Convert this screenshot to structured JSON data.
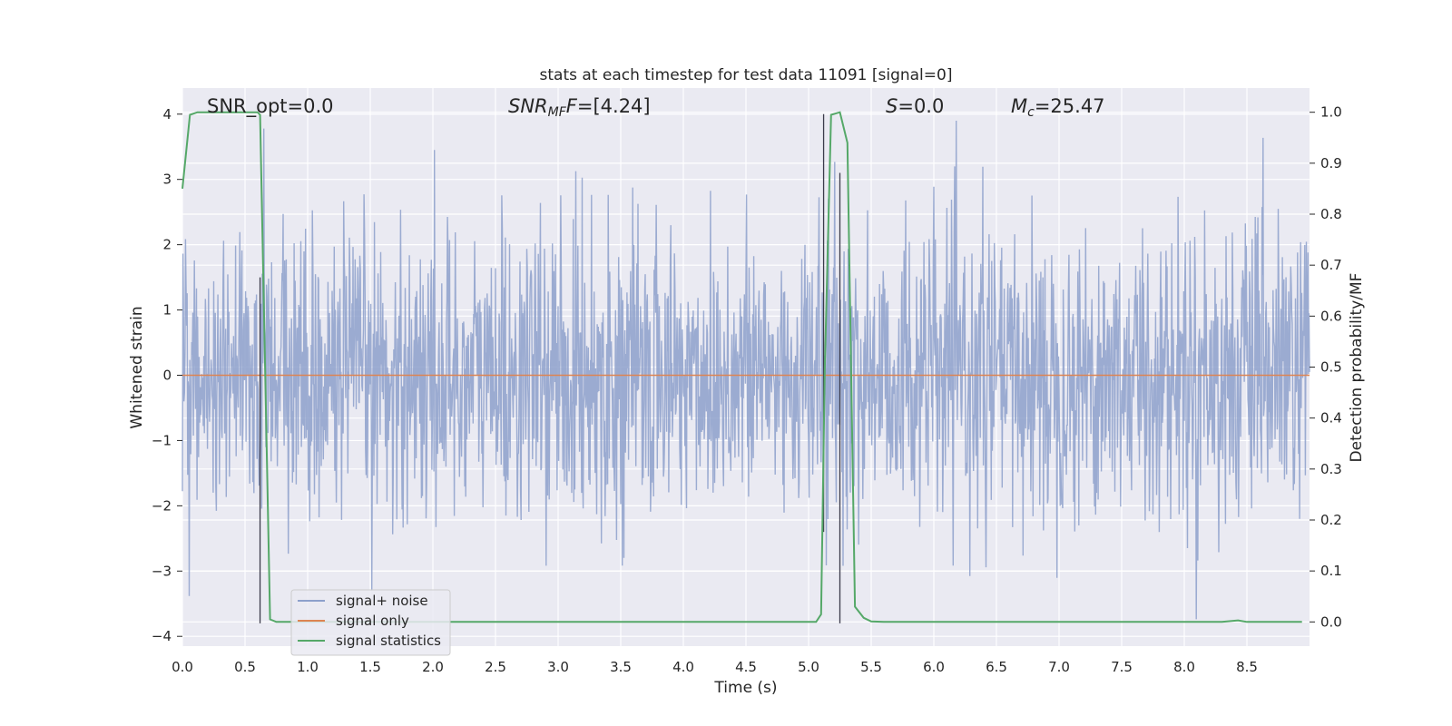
{
  "chart_data": {
    "type": "line",
    "title": "stats at each timestep for test data 11091 [signal=0]",
    "xlabel": "Time (s)",
    "ylabel": "Whitened strain",
    "y2label": "Detection probability/MF",
    "xlim": [
      0.0,
      9.0
    ],
    "ylim": [
      -4.15,
      4.4
    ],
    "y2lim": [
      -0.0475,
      1.0475
    ],
    "x_ticks": [
      "0.0",
      "0.5",
      "1.0",
      "1.5",
      "2.0",
      "2.5",
      "3.0",
      "3.5",
      "4.0",
      "4.5",
      "5.0",
      "5.5",
      "6.0",
      "6.5",
      "7.0",
      "7.5",
      "8.0",
      "8.5"
    ],
    "y_ticks": [
      "4",
      "3",
      "2",
      "1",
      "0",
      "−1",
      "−2",
      "−3",
      "−4"
    ],
    "y2_ticks": [
      "1.0",
      "0.9",
      "0.8",
      "0.7",
      "0.6",
      "0.5",
      "0.4",
      "0.3",
      "0.2",
      "0.1",
      "0.0"
    ],
    "grid": true,
    "legend_position": "lower-left",
    "annotations": {
      "snr_opt": "SNR_opt=0.0",
      "snr_mf_main": "SNR",
      "snr_mf_sub": "MF",
      "snr_mf_value": "=[4.24]",
      "s_main": "S",
      "s_value": "=0.0",
      "mc_main": "M",
      "mc_sub": "c",
      "mc_value": "=25.47"
    },
    "vertical_markers_x": [
      0.62,
      5.12,
      5.25
    ],
    "series": [
      {
        "name": "signal+ noise",
        "color": "#8da0cb",
        "axis": "left",
        "style": "dense noise, approx. gaussian, envelope about ±3.5",
        "sample_rate_per_s": 240,
        "seed": 11091
      },
      {
        "name": "signal only",
        "color": "#dd8452",
        "axis": "left",
        "x": [
          0.0,
          9.0
        ],
        "y": [
          0.0,
          0.0
        ]
      },
      {
        "name": "signal statistics",
        "color": "#55a868",
        "axis": "right",
        "x": [
          0.0,
          0.06,
          0.12,
          0.2,
          0.3,
          0.4,
          0.5,
          0.6,
          0.62,
          0.66,
          0.7,
          0.75,
          0.8,
          1.0,
          2.0,
          3.0,
          4.0,
          5.0,
          5.06,
          5.1,
          5.13,
          5.18,
          5.25,
          5.31,
          5.37,
          5.44,
          5.5,
          5.6,
          6.0,
          7.0,
          8.0,
          8.3,
          8.43,
          8.5,
          8.94
        ],
        "y": [
          0.85,
          0.995,
          1.0,
          1.0,
          1.0,
          1.0,
          1.0,
          1.0,
          0.995,
          0.5,
          0.005,
          0.0,
          0.0,
          0.0,
          0.0,
          0.0,
          0.0,
          0.0,
          0.0,
          0.015,
          0.5,
          0.995,
          1.0,
          0.94,
          0.03,
          0.008,
          0.001,
          0.0,
          0.0,
          0.0,
          0.0,
          0.0,
          0.003,
          0.0,
          0.0
        ]
      }
    ]
  },
  "legend": {
    "items": [
      {
        "label": "signal+ noise",
        "color": "#8da0cb"
      },
      {
        "label": "signal only",
        "color": "#dd8452"
      },
      {
        "label": "signal statistics",
        "color": "#55a868"
      }
    ]
  }
}
